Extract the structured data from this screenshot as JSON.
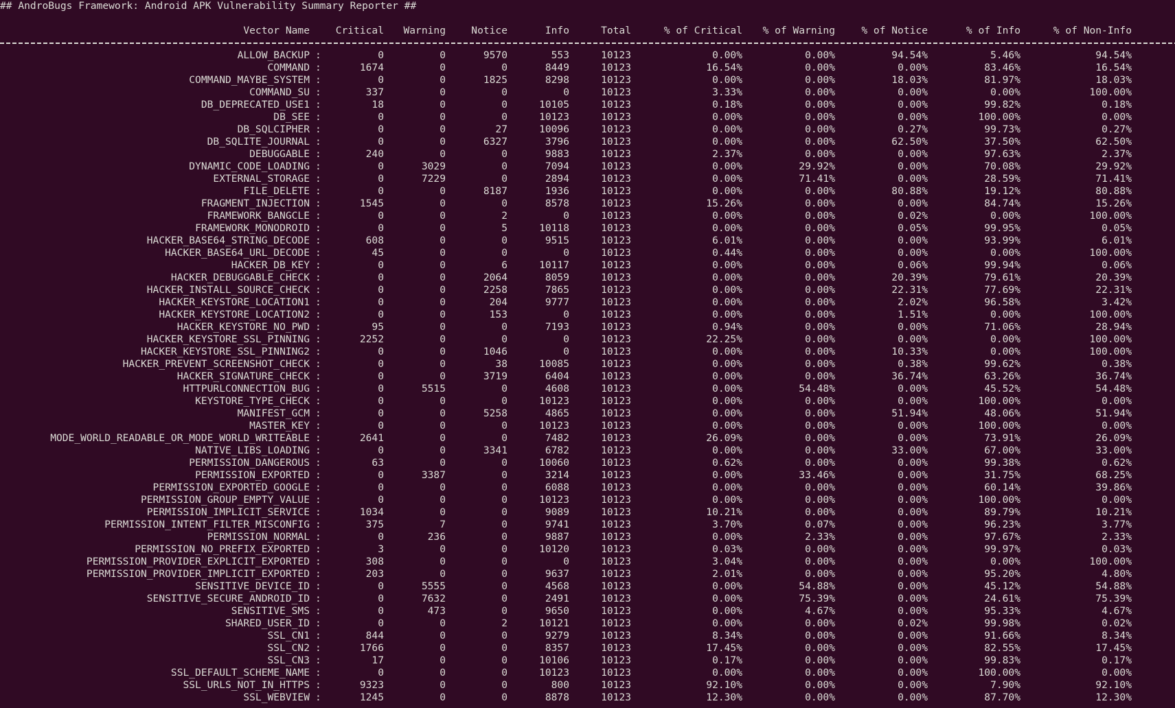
{
  "terminal": {
    "title": "## AndroBugs Framework: Android APK Vulnerability Summary Reporter ##",
    "background_color": "#300a24",
    "text_color": "#dcdcd6"
  },
  "table": {
    "headers": [
      "Vector Name",
      "Critical",
      "Warning",
      "Notice",
      "Info",
      "Total",
      "% of Critical",
      "% of Warning",
      "% of Notice",
      "% of Info",
      "% of Non-Info"
    ],
    "rows": [
      {
        "name": "ALLOW_BACKUP",
        "values": [
          "0",
          "0",
          "9570",
          "553",
          "10123",
          "0.00%",
          "0.00%",
          "94.54%",
          "5.46%",
          "94.54%"
        ]
      },
      {
        "name": "COMMAND",
        "values": [
          "1674",
          "0",
          "0",
          "8449",
          "10123",
          "16.54%",
          "0.00%",
          "0.00%",
          "83.46%",
          "16.54%"
        ]
      },
      {
        "name": "COMMAND_MAYBE_SYSTEM",
        "values": [
          "0",
          "0",
          "1825",
          "8298",
          "10123",
          "0.00%",
          "0.00%",
          "18.03%",
          "81.97%",
          "18.03%"
        ]
      },
      {
        "name": "COMMAND_SU",
        "values": [
          "337",
          "0",
          "0",
          "0",
          "10123",
          "3.33%",
          "0.00%",
          "0.00%",
          "0.00%",
          "100.00%"
        ]
      },
      {
        "name": "DB_DEPRECATED_USE1",
        "values": [
          "18",
          "0",
          "0",
          "10105",
          "10123",
          "0.18%",
          "0.00%",
          "0.00%",
          "99.82%",
          "0.18%"
        ]
      },
      {
        "name": "DB_SEE",
        "values": [
          "0",
          "0",
          "0",
          "10123",
          "10123",
          "0.00%",
          "0.00%",
          "0.00%",
          "100.00%",
          "0.00%"
        ]
      },
      {
        "name": "DB_SQLCIPHER",
        "values": [
          "0",
          "0",
          "27",
          "10096",
          "10123",
          "0.00%",
          "0.00%",
          "0.27%",
          "99.73%",
          "0.27%"
        ]
      },
      {
        "name": "DB_SQLITE_JOURNAL",
        "values": [
          "0",
          "0",
          "6327",
          "3796",
          "10123",
          "0.00%",
          "0.00%",
          "62.50%",
          "37.50%",
          "62.50%"
        ]
      },
      {
        "name": "DEBUGGABLE",
        "values": [
          "240",
          "0",
          "0",
          "9883",
          "10123",
          "2.37%",
          "0.00%",
          "0.00%",
          "97.63%",
          "2.37%"
        ]
      },
      {
        "name": "DYNAMIC_CODE_LOADING",
        "values": [
          "0",
          "3029",
          "0",
          "7094",
          "10123",
          "0.00%",
          "29.92%",
          "0.00%",
          "70.08%",
          "29.92%"
        ]
      },
      {
        "name": "EXTERNAL_STORAGE",
        "values": [
          "0",
          "7229",
          "0",
          "2894",
          "10123",
          "0.00%",
          "71.41%",
          "0.00%",
          "28.59%",
          "71.41%"
        ]
      },
      {
        "name": "FILE_DELETE",
        "values": [
          "0",
          "0",
          "8187",
          "1936",
          "10123",
          "0.00%",
          "0.00%",
          "80.88%",
          "19.12%",
          "80.88%"
        ]
      },
      {
        "name": "FRAGMENT_INJECTION",
        "values": [
          "1545",
          "0",
          "0",
          "8578",
          "10123",
          "15.26%",
          "0.00%",
          "0.00%",
          "84.74%",
          "15.26%"
        ]
      },
      {
        "name": "FRAMEWORK_BANGCLE",
        "values": [
          "0",
          "0",
          "2",
          "0",
          "10123",
          "0.00%",
          "0.00%",
          "0.02%",
          "0.00%",
          "100.00%"
        ]
      },
      {
        "name": "FRAMEWORK_MONODROID",
        "values": [
          "0",
          "0",
          "5",
          "10118",
          "10123",
          "0.00%",
          "0.00%",
          "0.05%",
          "99.95%",
          "0.05%"
        ]
      },
      {
        "name": "HACKER_BASE64_STRING_DECODE",
        "values": [
          "608",
          "0",
          "0",
          "9515",
          "10123",
          "6.01%",
          "0.00%",
          "0.00%",
          "93.99%",
          "6.01%"
        ]
      },
      {
        "name": "HACKER_BASE64_URL_DECODE",
        "values": [
          "45",
          "0",
          "0",
          "0",
          "10123",
          "0.44%",
          "0.00%",
          "0.00%",
          "0.00%",
          "100.00%"
        ]
      },
      {
        "name": "HACKER_DB_KEY",
        "values": [
          "0",
          "0",
          "6",
          "10117",
          "10123",
          "0.00%",
          "0.00%",
          "0.06%",
          "99.94%",
          "0.06%"
        ]
      },
      {
        "name": "HACKER_DEBUGGABLE_CHECK",
        "values": [
          "0",
          "0",
          "2064",
          "8059",
          "10123",
          "0.00%",
          "0.00%",
          "20.39%",
          "79.61%",
          "20.39%"
        ]
      },
      {
        "name": "HACKER_INSTALL_SOURCE_CHECK",
        "values": [
          "0",
          "0",
          "2258",
          "7865",
          "10123",
          "0.00%",
          "0.00%",
          "22.31%",
          "77.69%",
          "22.31%"
        ]
      },
      {
        "name": "HACKER_KEYSTORE_LOCATION1",
        "values": [
          "0",
          "0",
          "204",
          "9777",
          "10123",
          "0.00%",
          "0.00%",
          "2.02%",
          "96.58%",
          "3.42%"
        ]
      },
      {
        "name": "HACKER_KEYSTORE_LOCATION2",
        "values": [
          "0",
          "0",
          "153",
          "0",
          "10123",
          "0.00%",
          "0.00%",
          "1.51%",
          "0.00%",
          "100.00%"
        ]
      },
      {
        "name": "HACKER_KEYSTORE_NO_PWD",
        "values": [
          "95",
          "0",
          "0",
          "7193",
          "10123",
          "0.94%",
          "0.00%",
          "0.00%",
          "71.06%",
          "28.94%"
        ]
      },
      {
        "name": "HACKER_KEYSTORE_SSL_PINNING",
        "values": [
          "2252",
          "0",
          "0",
          "0",
          "10123",
          "22.25%",
          "0.00%",
          "0.00%",
          "0.00%",
          "100.00%"
        ]
      },
      {
        "name": "HACKER_KEYSTORE_SSL_PINNING2",
        "values": [
          "0",
          "0",
          "1046",
          "0",
          "10123",
          "0.00%",
          "0.00%",
          "10.33%",
          "0.00%",
          "100.00%"
        ]
      },
      {
        "name": "HACKER_PREVENT_SCREENSHOT_CHECK",
        "values": [
          "0",
          "0",
          "38",
          "10085",
          "10123",
          "0.00%",
          "0.00%",
          "0.38%",
          "99.62%",
          "0.38%"
        ]
      },
      {
        "name": "HACKER_SIGNATURE_CHECK",
        "values": [
          "0",
          "0",
          "3719",
          "6404",
          "10123",
          "0.00%",
          "0.00%",
          "36.74%",
          "63.26%",
          "36.74%"
        ]
      },
      {
        "name": "HTTPURLCONNECTION_BUG",
        "values": [
          "0",
          "5515",
          "0",
          "4608",
          "10123",
          "0.00%",
          "54.48%",
          "0.00%",
          "45.52%",
          "54.48%"
        ]
      },
      {
        "name": "KEYSTORE_TYPE_CHECK",
        "values": [
          "0",
          "0",
          "0",
          "10123",
          "10123",
          "0.00%",
          "0.00%",
          "0.00%",
          "100.00%",
          "0.00%"
        ]
      },
      {
        "name": "MANIFEST_GCM",
        "values": [
          "0",
          "0",
          "5258",
          "4865",
          "10123",
          "0.00%",
          "0.00%",
          "51.94%",
          "48.06%",
          "51.94%"
        ]
      },
      {
        "name": "MASTER_KEY",
        "values": [
          "0",
          "0",
          "0",
          "10123",
          "10123",
          "0.00%",
          "0.00%",
          "0.00%",
          "100.00%",
          "0.00%"
        ]
      },
      {
        "name": "MODE_WORLD_READABLE_OR_MODE_WORLD_WRITEABLE",
        "values": [
          "2641",
          "0",
          "0",
          "7482",
          "10123",
          "26.09%",
          "0.00%",
          "0.00%",
          "73.91%",
          "26.09%"
        ]
      },
      {
        "name": "NATIVE_LIBS_LOADING",
        "values": [
          "0",
          "0",
          "3341",
          "6782",
          "10123",
          "0.00%",
          "0.00%",
          "33.00%",
          "67.00%",
          "33.00%"
        ]
      },
      {
        "name": "PERMISSION_DANGEROUS",
        "values": [
          "63",
          "0",
          "0",
          "10060",
          "10123",
          "0.62%",
          "0.00%",
          "0.00%",
          "99.38%",
          "0.62%"
        ]
      },
      {
        "name": "PERMISSION_EXPORTED",
        "values": [
          "0",
          "3387",
          "0",
          "3214",
          "10123",
          "0.00%",
          "33.46%",
          "0.00%",
          "31.75%",
          "68.25%"
        ]
      },
      {
        "name": "PERMISSION_EXPORTED_GOOGLE",
        "values": [
          "0",
          "0",
          "0",
          "6088",
          "10123",
          "0.00%",
          "0.00%",
          "0.00%",
          "60.14%",
          "39.86%"
        ]
      },
      {
        "name": "PERMISSION_GROUP_EMPTY_VALUE",
        "values": [
          "0",
          "0",
          "0",
          "10123",
          "10123",
          "0.00%",
          "0.00%",
          "0.00%",
          "100.00%",
          "0.00%"
        ]
      },
      {
        "name": "PERMISSION_IMPLICIT_SERVICE",
        "values": [
          "1034",
          "0",
          "0",
          "9089",
          "10123",
          "10.21%",
          "0.00%",
          "0.00%",
          "89.79%",
          "10.21%"
        ]
      },
      {
        "name": "PERMISSION_INTENT_FILTER_MISCONFIG",
        "values": [
          "375",
          "7",
          "0",
          "9741",
          "10123",
          "3.70%",
          "0.07%",
          "0.00%",
          "96.23%",
          "3.77%"
        ]
      },
      {
        "name": "PERMISSION_NORMAL",
        "values": [
          "0",
          "236",
          "0",
          "9887",
          "10123",
          "0.00%",
          "2.33%",
          "0.00%",
          "97.67%",
          "2.33%"
        ]
      },
      {
        "name": "PERMISSION_NO_PREFIX_EXPORTED",
        "values": [
          "3",
          "0",
          "0",
          "10120",
          "10123",
          "0.03%",
          "0.00%",
          "0.00%",
          "99.97%",
          "0.03%"
        ]
      },
      {
        "name": "PERMISSION_PROVIDER_EXPLICIT_EXPORTED",
        "values": [
          "308",
          "0",
          "0",
          "0",
          "10123",
          "3.04%",
          "0.00%",
          "0.00%",
          "0.00%",
          "100.00%"
        ]
      },
      {
        "name": "PERMISSION_PROVIDER_IMPLICIT_EXPORTED",
        "values": [
          "203",
          "0",
          "0",
          "9637",
          "10123",
          "2.01%",
          "0.00%",
          "0.00%",
          "95.20%",
          "4.80%"
        ]
      },
      {
        "name": "SENSITIVE_DEVICE_ID",
        "values": [
          "0",
          "5555",
          "0",
          "4568",
          "10123",
          "0.00%",
          "54.88%",
          "0.00%",
          "45.12%",
          "54.88%"
        ]
      },
      {
        "name": "SENSITIVE_SECURE_ANDROID_ID",
        "values": [
          "0",
          "7632",
          "0",
          "2491",
          "10123",
          "0.00%",
          "75.39%",
          "0.00%",
          "24.61%",
          "75.39%"
        ]
      },
      {
        "name": "SENSITIVE_SMS",
        "values": [
          "0",
          "473",
          "0",
          "9650",
          "10123",
          "0.00%",
          "4.67%",
          "0.00%",
          "95.33%",
          "4.67%"
        ]
      },
      {
        "name": "SHARED_USER_ID",
        "values": [
          "0",
          "0",
          "2",
          "10121",
          "10123",
          "0.00%",
          "0.00%",
          "0.02%",
          "99.98%",
          "0.02%"
        ]
      },
      {
        "name": "SSL_CN1",
        "values": [
          "844",
          "0",
          "0",
          "9279",
          "10123",
          "8.34%",
          "0.00%",
          "0.00%",
          "91.66%",
          "8.34%"
        ]
      },
      {
        "name": "SSL_CN2",
        "values": [
          "1766",
          "0",
          "0",
          "8357",
          "10123",
          "17.45%",
          "0.00%",
          "0.00%",
          "82.55%",
          "17.45%"
        ]
      },
      {
        "name": "SSL_CN3",
        "values": [
          "17",
          "0",
          "0",
          "10106",
          "10123",
          "0.17%",
          "0.00%",
          "0.00%",
          "99.83%",
          "0.17%"
        ]
      },
      {
        "name": "SSL_DEFAULT_SCHEME_NAME",
        "values": [
          "0",
          "0",
          "0",
          "10123",
          "10123",
          "0.00%",
          "0.00%",
          "0.00%",
          "100.00%",
          "0.00%"
        ]
      },
      {
        "name": "SSL_URLS_NOT_IN_HTTPS",
        "values": [
          "9323",
          "0",
          "0",
          "800",
          "10123",
          "92.10%",
          "0.00%",
          "0.00%",
          "7.90%",
          "92.10%"
        ]
      },
      {
        "name": "SSL_WEBVIEW",
        "values": [
          "1245",
          "0",
          "0",
          "8878",
          "10123",
          "12.30%",
          "0.00%",
          "0.00%",
          "87.70%",
          "12.30%"
        ]
      }
    ]
  }
}
